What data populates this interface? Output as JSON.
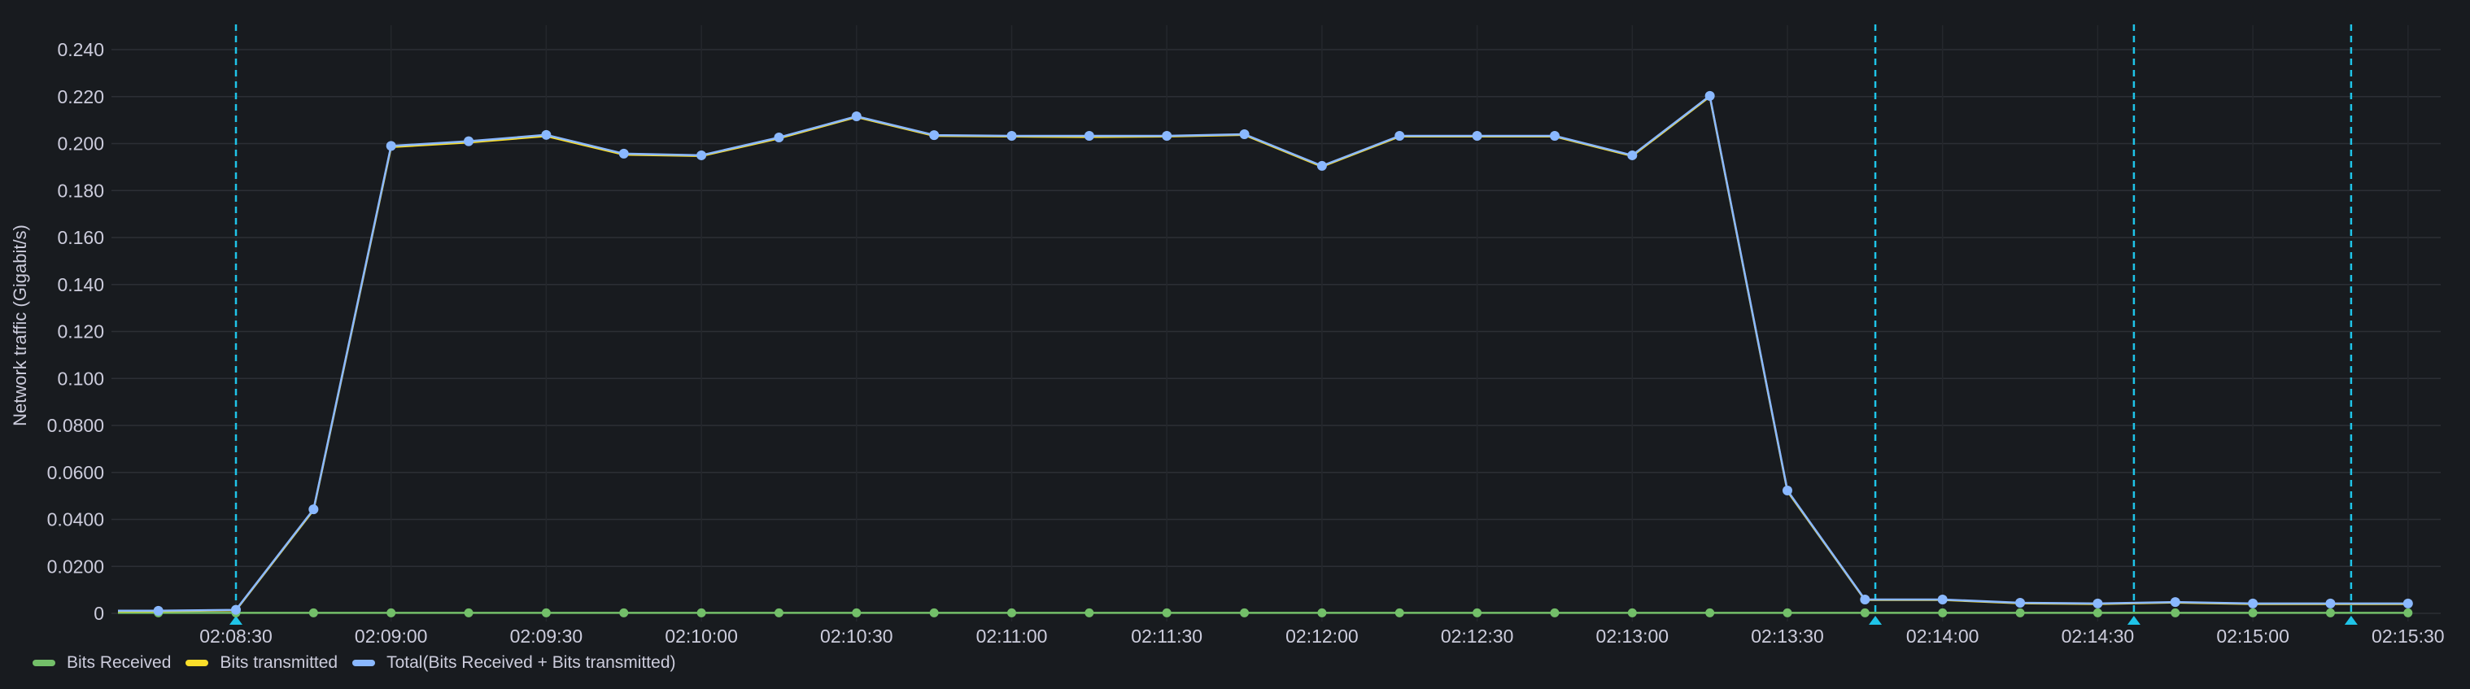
{
  "panel": {
    "background": "#181b1f"
  },
  "chart_data": {
    "type": "line",
    "title": "",
    "xlabel": "",
    "ylabel": "Network traffic (Gigabit/s)",
    "ylim": [
      0,
      0.24
    ],
    "grid": true,
    "legend_position": "bottom-left",
    "y_ticks": [
      "0",
      "0.0200",
      "0.0400",
      "0.0600",
      "0.0800",
      "0.100",
      "0.120",
      "0.140",
      "0.160",
      "0.180",
      "0.200",
      "0.220",
      "0.240"
    ],
    "y_tick_values": [
      0,
      0.02,
      0.04,
      0.06,
      0.08,
      0.1,
      0.12,
      0.14,
      0.16,
      0.18,
      0.2,
      0.22,
      0.24
    ],
    "x_ticks": [
      "02:08:30",
      "02:09:00",
      "02:09:30",
      "02:10:00",
      "02:10:30",
      "02:11:00",
      "02:11:30",
      "02:12:00",
      "02:12:30",
      "02:13:00",
      "02:13:30",
      "02:14:00",
      "02:14:30",
      "02:15:00",
      "02:15:30"
    ],
    "x": [
      "02:08:15",
      "02:08:30",
      "02:08:45",
      "02:09:00",
      "02:09:15",
      "02:09:30",
      "02:09:45",
      "02:10:00",
      "02:10:15",
      "02:10:30",
      "02:10:45",
      "02:11:00",
      "02:11:15",
      "02:11:30",
      "02:11:45",
      "02:12:00",
      "02:12:15",
      "02:12:30",
      "02:12:45",
      "02:13:00",
      "02:13:15",
      "02:13:30",
      "02:13:45",
      "02:14:00",
      "02:14:15",
      "02:14:30",
      "02:14:45",
      "02:15:00",
      "02:15:15",
      "02:15:30"
    ],
    "series": [
      {
        "name": "Bits Received",
        "color": "#73bf69",
        "values": [
          0.0002,
          0.0002,
          0.0002,
          0.0002,
          0.0002,
          0.0002,
          0.0002,
          0.0002,
          0.0002,
          0.0002,
          0.0002,
          0.0002,
          0.0002,
          0.0002,
          0.0002,
          0.0002,
          0.0002,
          0.0002,
          0.0002,
          0.0002,
          0.0002,
          0.0002,
          0.0002,
          0.0002,
          0.0002,
          0.0002,
          0.0002,
          0.0002,
          0.0002,
          0.0002
        ]
      },
      {
        "name": "Bits transmitted",
        "color": "#fade2a",
        "values": [
          0.0009,
          0.0013,
          0.044,
          0.1985,
          0.2005,
          0.2032,
          0.1953,
          0.1947,
          0.2022,
          0.2113,
          0.2033,
          0.203,
          0.2028,
          0.203,
          0.2037,
          0.1902,
          0.203,
          0.203,
          0.203,
          0.1947,
          0.22,
          0.052,
          0.0057,
          0.0057,
          0.0043,
          0.004,
          0.0046,
          0.004,
          0.004,
          0.004
        ]
      },
      {
        "name": "Total(Bits Received + Bits transmitted)",
        "color": "#8ab8ff",
        "values": [
          0.0011,
          0.0015,
          0.0443,
          0.199,
          0.201,
          0.2037,
          0.1957,
          0.195,
          0.2026,
          0.2116,
          0.2036,
          0.2033,
          0.2033,
          0.2033,
          0.204,
          0.1905,
          0.2033,
          0.2033,
          0.2033,
          0.195,
          0.2203,
          0.0523,
          0.0059,
          0.0059,
          0.0045,
          0.0042,
          0.0048,
          0.0042,
          0.0042,
          0.0042
        ]
      }
    ],
    "annotations": [
      {
        "type": "vertical-dashed",
        "color": "#1fc4e8",
        "x": "02:08:30"
      },
      {
        "type": "vertical-dashed",
        "color": "#1fc4e8",
        "x": "02:13:47"
      },
      {
        "type": "vertical-dashed",
        "color": "#1fc4e8",
        "x": "02:14:37"
      },
      {
        "type": "vertical-dashed",
        "color": "#1fc4e8",
        "x": "02:15:19"
      }
    ]
  },
  "legend": {
    "items": [
      {
        "label": "Bits Received",
        "color": "#73bf69"
      },
      {
        "label": "Bits transmitted",
        "color": "#fade2a"
      },
      {
        "label": "Total(Bits Received + Bits transmitted)",
        "color": "#8ab8ff"
      }
    ]
  }
}
